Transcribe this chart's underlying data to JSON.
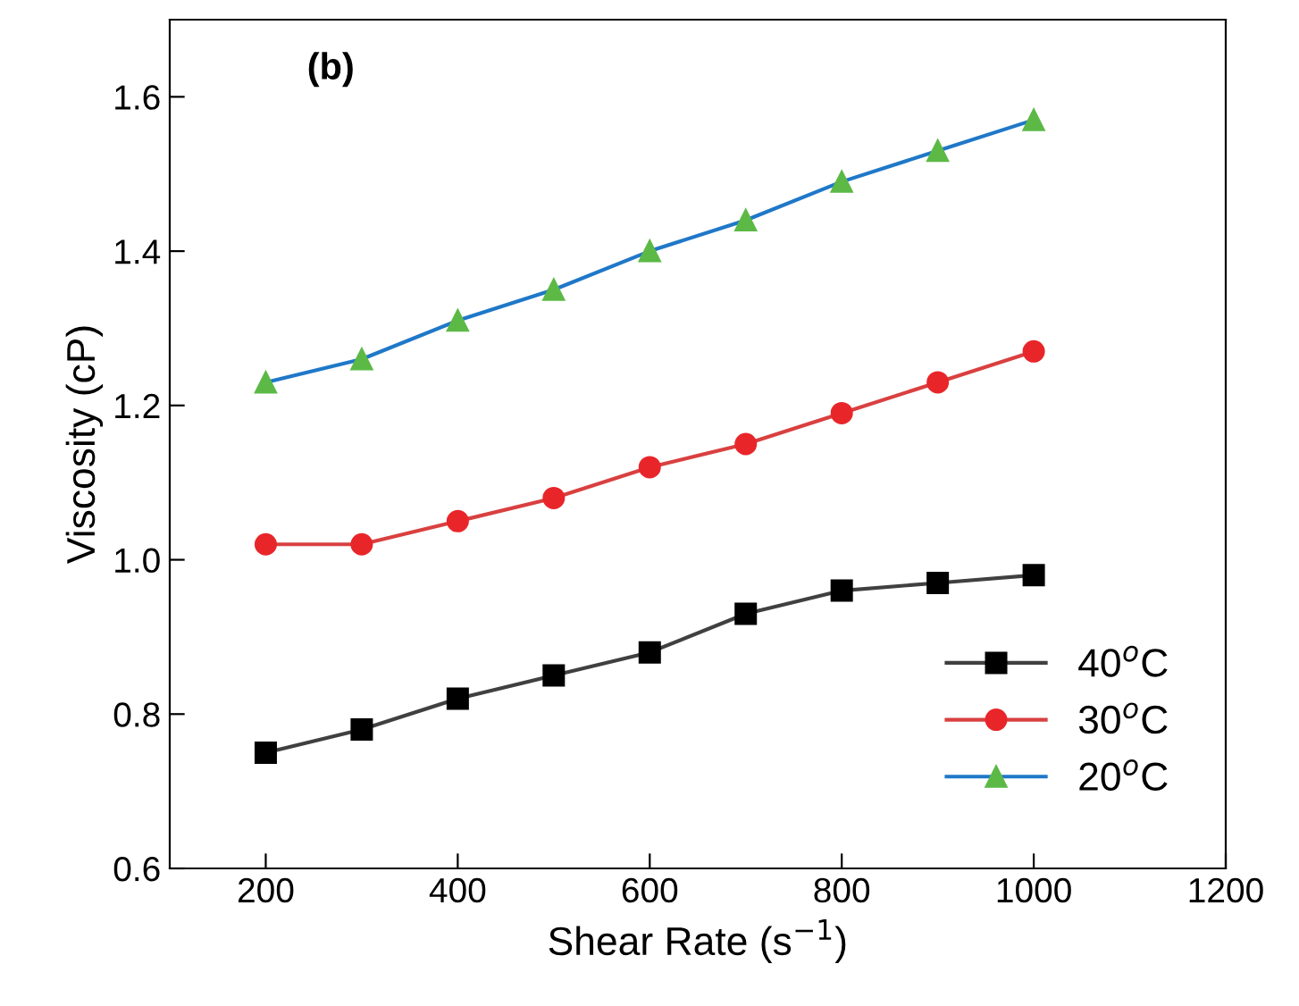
{
  "chart_data": {
    "type": "line",
    "xlabel": "Shear Rate (s$^{−1}$)",
    "ylabel": "Viscosity (cP)",
    "annotations": [
      "(b)"
    ],
    "x": [
      200,
      300,
      400,
      500,
      600,
      700,
      800,
      900,
      1000
    ],
    "series": [
      {
        "name": "40$^{o}$C",
        "color": "#404040",
        "colors": [
          "#000000",
          "#000000",
          "#000000",
          "#000000",
          "#000000",
          "#000000",
          "#000000",
          "#000000",
          "#000000"
        ],
        "marker": "square",
        "values": [
          0.75,
          0.78,
          0.82,
          0.85,
          0.88,
          0.93,
          0.96,
          0.97,
          0.98
        ]
      },
      {
        "name": "30$^{o}$C",
        "color": "#d94040",
        "colors": [
          "#e8262a",
          "#e8262a",
          "#e8262a",
          "#e8262a",
          "#e8262a",
          "#e8262a",
          "#e8262a",
          "#e8262a",
          "#e8262a"
        ],
        "marker": "circle",
        "values": [
          1.02,
          1.02,
          1.05,
          1.08,
          1.12,
          1.15,
          1.19,
          1.23,
          1.27
        ]
      },
      {
        "name": "20$^{o}$C",
        "color": "#1f78c8",
        "colors": [
          "#5cb946",
          "#5cb946",
          "#5cb946",
          "#5cb946",
          "#5cb946",
          "#5cb946",
          "#5cb946",
          "#5cb946",
          "#5cb946"
        ],
        "marker": "triangle",
        "values": [
          1.23,
          1.26,
          1.31,
          1.35,
          1.4,
          1.44,
          1.49,
          1.53,
          1.57
        ]
      }
    ],
    "xlim": [
      100,
      1200
    ],
    "xticks": [
      200,
      400,
      600,
      800,
      1000,
      1200
    ],
    "ylim": [
      0.6,
      1.7
    ],
    "yticks": [
      {
        "value": 0.6,
        "label": "0.6"
      },
      {
        "value": 0.8,
        "label": "0.8"
      },
      {
        "value": 1.0,
        "label": "1.0"
      },
      {
        "value": 1.2,
        "label": "1.2"
      },
      {
        "value": 1.4,
        "label": "1.4"
      },
      {
        "value": 1.6,
        "label": "1.6"
      }
    ],
    "grid": false,
    "legend": "bottom right",
    "line_style": "solid"
  }
}
